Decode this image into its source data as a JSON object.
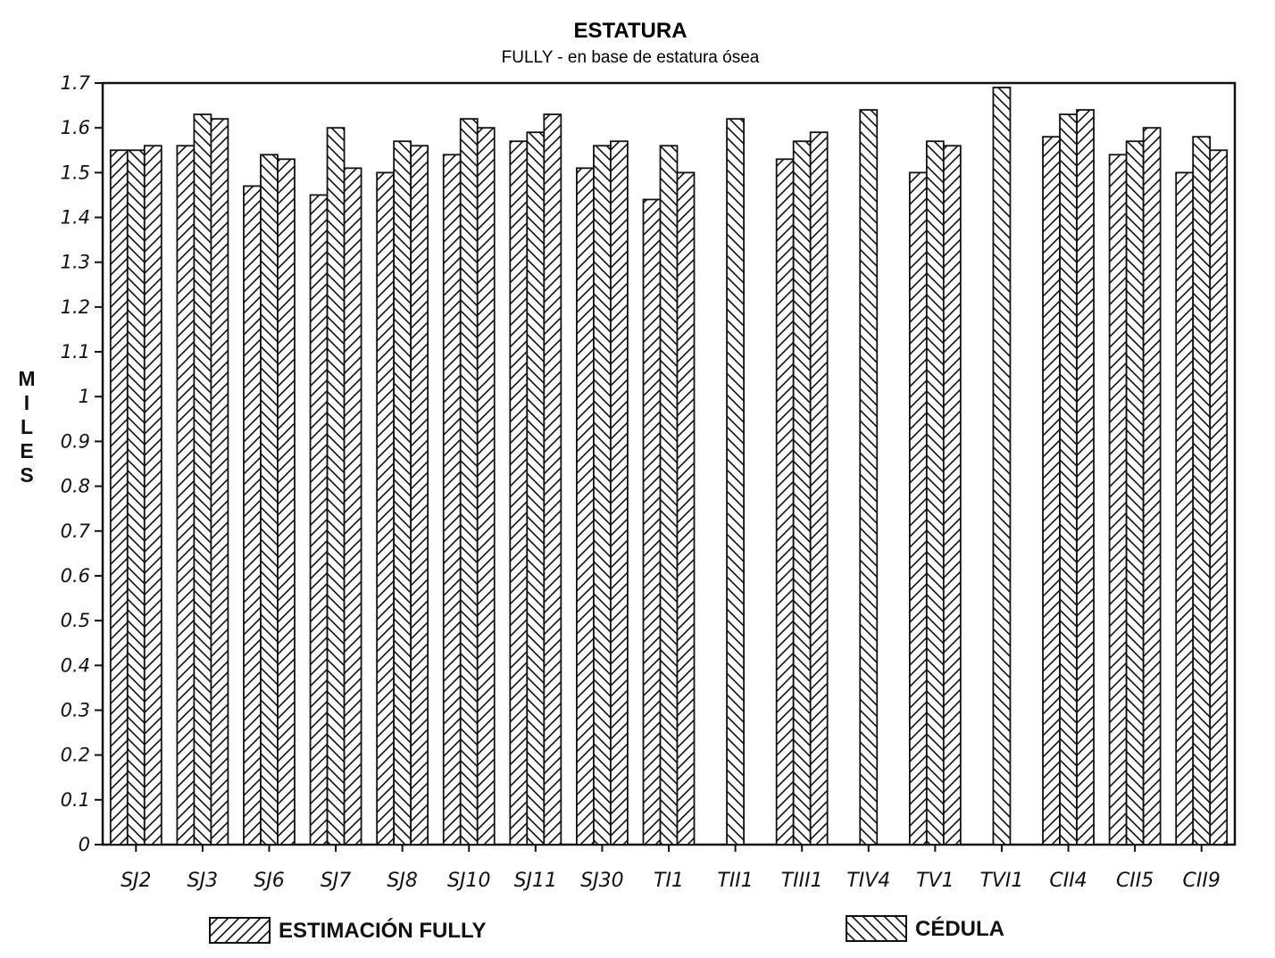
{
  "chart_data": {
    "type": "bar",
    "title": "ESTATURA",
    "subtitle": "FULLY - en base de estatura ósea",
    "ylabel": "MILES",
    "xlabel": "",
    "ylim": [
      0,
      1.7
    ],
    "yticks": [
      "0",
      "0.1",
      "0.2",
      "0.3",
      "0.4",
      "0.5",
      "0.6",
      "0.7",
      "0.8",
      "0.9",
      "1",
      "1.1",
      "1.2",
      "1.3",
      "1.4",
      "1.5",
      "1.6",
      "1.7"
    ],
    "grid": false,
    "legend_position": "bottom",
    "categories": [
      "SJ2",
      "SJ3",
      "SJ6",
      "SJ7",
      "SJ8",
      "SJ10",
      "SJ11",
      "SJ30",
      "TI1",
      "TII1",
      "TIII1",
      "TIV4",
      "TV1",
      "TVI1",
      "CII4",
      "CII5",
      "CII9"
    ],
    "series": [
      {
        "name": "ESTIMACIÓN FULLY",
        "pattern": "forward-hatch",
        "values": [
          1.55,
          1.56,
          1.47,
          1.45,
          1.5,
          1.54,
          1.57,
          1.51,
          1.44,
          null,
          1.53,
          null,
          1.5,
          null,
          1.58,
          1.54,
          1.5
        ]
      },
      {
        "name": "CÉDULA",
        "pattern": "back-hatch",
        "values": [
          1.55,
          1.63,
          1.54,
          1.6,
          1.57,
          1.62,
          1.59,
          1.56,
          1.56,
          1.62,
          1.57,
          1.64,
          1.57,
          1.69,
          1.63,
          1.57,
          1.58
        ]
      },
      {
        "name": "",
        "pattern": "forward-hatch",
        "values": [
          1.56,
          1.62,
          1.53,
          1.51,
          1.56,
          1.6,
          1.63,
          1.57,
          1.5,
          null,
          1.59,
          null,
          1.56,
          null,
          1.64,
          1.6,
          1.55
        ]
      }
    ],
    "colors": {
      "ink": "#111111",
      "background": "#ffffff"
    }
  }
}
